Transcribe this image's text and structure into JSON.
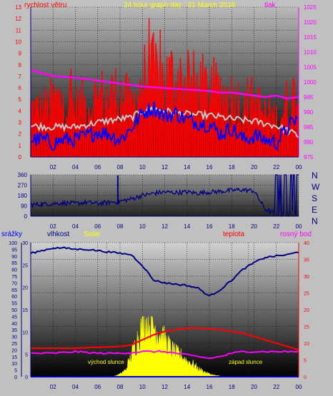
{
  "colors": {
    "bg": "#c0c0c0",
    "wind": "#ff0000",
    "wind_avg": "#0000ff",
    "pressure": "#ff00ff",
    "gust": "#c8c8c8",
    "direction": "#000080",
    "humidity": "#000080",
    "solar": "#ffff00",
    "temperature": "#ff0000",
    "dewpoint": "#ff00ff",
    "rain": "#0000ff"
  },
  "texts": {
    "title": "24 hour graph day : 31 March 2018",
    "wind_label": "rychlost větru",
    "pressure_label": "tlak",
    "rain_label": "srážky",
    "humidity_label": "vlhkost",
    "solar_label": "Solar",
    "temp_label": "teplota",
    "dew_label": "rosný bod",
    "sunrise": "východ slunce",
    "sunset": "západ slunce",
    "compass": [
      "N",
      "W",
      "S",
      "E",
      "N"
    ]
  },
  "chart_data": [
    {
      "type": "line",
      "title": "24 hour graph day : 31 March 2018",
      "x_ticks": [
        "02",
        "04",
        "06",
        "08",
        "10",
        "12",
        "14",
        "16",
        "18",
        "20",
        "22",
        "00"
      ],
      "ylim_left": [
        0,
        13
      ],
      "yticks_left": [
        0,
        1,
        2,
        3,
        4,
        5,
        6,
        7,
        8,
        9,
        10,
        11,
        12,
        13
      ],
      "ylim_right": [
        975,
        1025
      ],
      "yticks_right": [
        975,
        980,
        985,
        990,
        995,
        1000,
        1005,
        1010,
        1015,
        1020,
        1025
      ],
      "series": [
        {
          "name": "rychlost větru",
          "axis": "left",
          "x": [
            0,
            1,
            2,
            3,
            4,
            5,
            6,
            7,
            8,
            9,
            10,
            11,
            12,
            13,
            14,
            15,
            16,
            17,
            18,
            19,
            20,
            21,
            22,
            23,
            24
          ],
          "values": [
            4.5,
            4.2,
            5,
            5.5,
            4.5,
            5,
            5.5,
            5.5,
            6,
            4.5,
            7,
            7.5,
            7,
            7.5,
            6.5,
            6.5,
            6,
            6,
            5.5,
            5,
            5,
            4,
            3.5,
            5,
            6
          ]
        },
        {
          "name": "",
          "axis": "left",
          "x": [
            0,
            2,
            4,
            6,
            8,
            9,
            10,
            11,
            12,
            14,
            16,
            18,
            19,
            20,
            21,
            22,
            23,
            24
          ],
          "values": [
            2.7,
            2.6,
            2.6,
            3,
            3.3,
            3.4,
            4,
            4.2,
            4,
            3.7,
            3.6,
            3.3,
            3.2,
            3.1,
            2.9,
            2.7,
            2.3,
            1.8
          ]
        },
        {
          "name": "",
          "axis": "left",
          "x": [
            0,
            1,
            2,
            3,
            4,
            5,
            6,
            7,
            8,
            9,
            10,
            11,
            12,
            13,
            14,
            15,
            16,
            17,
            18,
            19,
            20,
            21,
            22,
            23,
            24
          ],
          "values": [
            1.5,
            1.5,
            1.2,
            1.5,
            1.5,
            1.8,
            2.2,
            2,
            1.5,
            2.5,
            3.8,
            4.3,
            3.5,
            3.8,
            3.2,
            3,
            2.8,
            2,
            2.5,
            1.5,
            1.8,
            1.5,
            1.2,
            2.5,
            3.5
          ]
        },
        {
          "name": "tlak",
          "axis": "right",
          "x": [
            0,
            1,
            2,
            4,
            6,
            8,
            10,
            12,
            14,
            16,
            17,
            18,
            19,
            20,
            21,
            22,
            23,
            24
          ],
          "values": [
            1004,
            1003,
            1002,
            1001.5,
            1000.5,
            999.5,
            998.5,
            998,
            997.5,
            997,
            996.5,
            996.5,
            996,
            995.5,
            995,
            995.5,
            994.5,
            995
          ]
        }
      ]
    },
    {
      "type": "line",
      "ylim": [
        0,
        360
      ],
      "yticks": [
        0,
        90,
        180,
        270,
        360
      ],
      "x_ticks": [
        "02",
        "04",
        "06",
        "08",
        "10",
        "12",
        "14",
        "16",
        "18",
        "20",
        "22",
        "00"
      ],
      "series": [
        {
          "name": "",
          "x": [
            0,
            1,
            2,
            3,
            4,
            5,
            6,
            7,
            8,
            9,
            10,
            11,
            12,
            13,
            14,
            15,
            16,
            17,
            18,
            19,
            20,
            21,
            22,
            23,
            24
          ],
          "values": [
            100,
            105,
            110,
            115,
            110,
            120,
            110,
            120,
            130,
            150,
            180,
            200,
            210,
            205,
            210,
            200,
            210,
            215,
            225,
            230,
            220,
            60,
            20,
            20,
            20
          ]
        }
      ]
    },
    {
      "type": "area",
      "x_ticks": [
        "02",
        "04",
        "06",
        "08",
        "10",
        "12",
        "14",
        "16",
        "18",
        "20",
        "22",
        "00"
      ],
      "ylim_humidity": [
        0,
        100
      ],
      "yticks_humidity": [
        0,
        5,
        10,
        15,
        20,
        25,
        30,
        35,
        40,
        45,
        50,
        55,
        60,
        65,
        70,
        75,
        80,
        85,
        90,
        95,
        100
      ],
      "ylim_rain": [
        0,
        30
      ],
      "yticks_rain": [
        0,
        5,
        10,
        15,
        20,
        25,
        30
      ],
      "ylim_temp": [
        0,
        40
      ],
      "yticks_temp": [
        0,
        5,
        10,
        15,
        20,
        25,
        30,
        35,
        40
      ],
      "series": [
        {
          "name": "vlhkost",
          "x": [
            0,
            1,
            2,
            3,
            4,
            5,
            6,
            7,
            8,
            9,
            10,
            11,
            12,
            13,
            14,
            15,
            16,
            17,
            18,
            19,
            20,
            21,
            22,
            23,
            24
          ],
          "values": [
            92,
            94,
            96,
            96,
            95,
            95,
            94,
            93,
            92,
            91,
            83,
            72,
            70,
            69,
            68,
            66,
            60,
            65,
            72,
            80,
            85,
            89,
            90,
            91,
            93
          ]
        },
        {
          "name": "Solar",
          "x": [
            6.8,
            7.5,
            8,
            8.5,
            9,
            9.5,
            10,
            10.5,
            11,
            11.5,
            12,
            12.5,
            13,
            13.5,
            14,
            14.5,
            15,
            15.5,
            16,
            16.5,
            17,
            17.3
          ],
          "values": [
            0,
            0.2,
            1,
            2.5,
            8,
            14,
            19,
            21,
            20,
            17,
            14,
            11,
            9,
            8,
            6,
            5,
            3,
            2,
            1,
            0.5,
            0.2,
            0
          ]
        },
        {
          "name": "teplota",
          "x": [
            0,
            2,
            4,
            6,
            8,
            9,
            10,
            11,
            12,
            13,
            14,
            15,
            16,
            17,
            18,
            19,
            20,
            21,
            22,
            23,
            24
          ],
          "values": [
            8.5,
            8.5,
            8.5,
            8.8,
            9,
            9.5,
            11,
            12.5,
            13.5,
            14,
            14.5,
            14.5,
            14.3,
            14,
            13.5,
            13,
            12,
            11,
            10,
            9,
            8
          ]
        },
        {
          "name": "rosný bod",
          "x": [
            0,
            2,
            4,
            6,
            8,
            9,
            10,
            11,
            12,
            13,
            14,
            15,
            16,
            17,
            18,
            19,
            20,
            21,
            22,
            23,
            24
          ],
          "values": [
            7,
            7,
            7.5,
            7,
            7,
            7.2,
            7.5,
            7.5,
            7.5,
            7,
            6.5,
            6,
            5.5,
            6,
            7,
            7.5,
            7.5,
            7.5,
            7.5,
            7.5,
            7.5
          ]
        },
        {
          "name": "srážky",
          "x": [
            0,
            24
          ],
          "values": [
            0,
            0
          ]
        }
      ]
    }
  ]
}
